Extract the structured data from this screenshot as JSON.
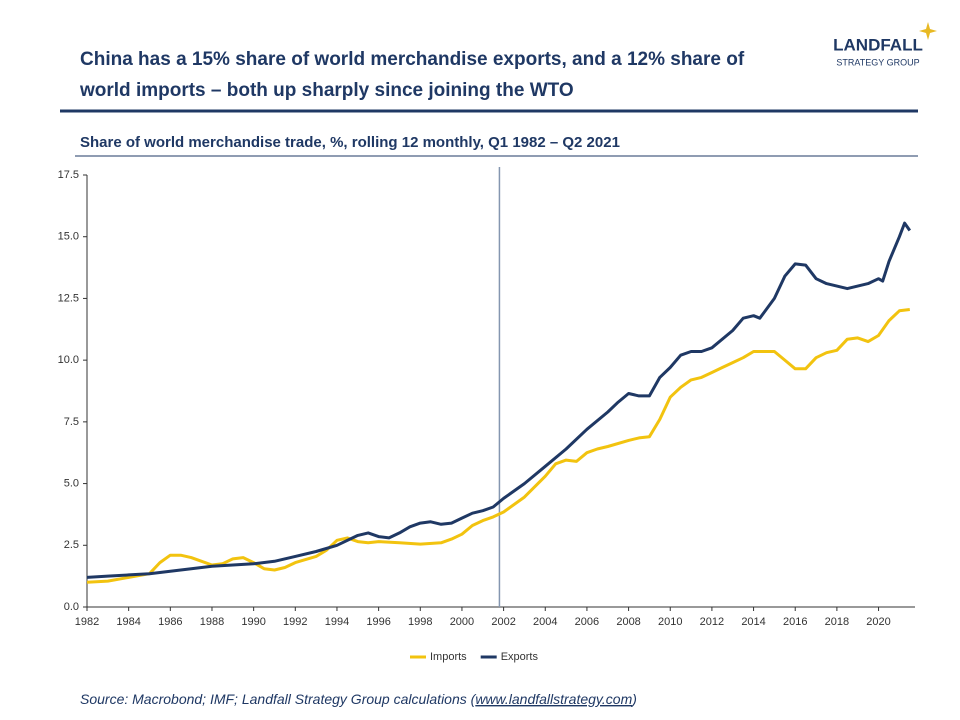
{
  "header": {
    "title_lines": [
      "China has a 15% share of world merchandise exports, and a 12% share of",
      "world imports – both up sharply since joining the WTO"
    ],
    "logo_name": "LANDFALL",
    "logo_sub": "STRATEGY GROUP"
  },
  "chart_data": {
    "type": "line",
    "subtitle": "Share of world merchandise trade, %, rolling 12 monthly, Q1 1982 – Q2 2021",
    "xlim": [
      1982,
      2021.75
    ],
    "ylim": [
      0,
      17.5
    ],
    "xticks": [
      1982,
      1984,
      1986,
      1988,
      1990,
      1992,
      1994,
      1996,
      1998,
      2000,
      2002,
      2004,
      2006,
      2008,
      2010,
      2012,
      2014,
      2016,
      2018,
      2020
    ],
    "yticks": [
      {
        "value": 0,
        "label": "0.0"
      },
      2.5,
      {
        "value": 5,
        "label": "5.0"
      },
      7.5,
      {
        "value": 10,
        "label": "10.0"
      },
      12.5,
      {
        "value": 15,
        "label": "15.0"
      },
      17.5
    ],
    "reference_x": 2001.8,
    "reference_color": "#8496b0",
    "legend": "bottom",
    "series": [
      {
        "name": "Imports",
        "color": "#f2c30f",
        "x": [
          1982,
          1983,
          1984,
          1985,
          1985.5,
          1986,
          1986.5,
          1987,
          1987.5,
          1988,
          1988.5,
          1989,
          1989.5,
          1990,
          1990.5,
          1991,
          1991.5,
          1992,
          1993,
          1993.5,
          1994,
          1994.5,
          1995,
          1995.5,
          1996,
          1997,
          1998,
          1999,
          1999.5,
          2000,
          2000.5,
          2001,
          2001.5,
          2002,
          2003,
          2004,
          2004.5,
          2005,
          2005.5,
          2006,
          2006.5,
          2007,
          2008,
          2008.5,
          2009,
          2009.5,
          2010,
          2010.5,
          2011,
          2011.5,
          2012,
          2012.5,
          2013,
          2013.5,
          2014,
          2014.5,
          2015,
          2015.5,
          2016,
          2016.5,
          2017,
          2017.5,
          2018,
          2018.5,
          2019,
          2019.5,
          2020,
          2020.5,
          2021,
          2021.5
        ],
        "values": [
          1.0,
          1.05,
          1.2,
          1.35,
          1.8,
          2.1,
          2.1,
          2.0,
          1.85,
          1.7,
          1.75,
          1.95,
          2.0,
          1.8,
          1.55,
          1.5,
          1.6,
          1.8,
          2.05,
          2.3,
          2.7,
          2.8,
          2.65,
          2.6,
          2.65,
          2.6,
          2.55,
          2.6,
          2.75,
          2.95,
          3.3,
          3.5,
          3.65,
          3.85,
          4.45,
          5.3,
          5.8,
          5.95,
          5.9,
          6.25,
          6.4,
          6.5,
          6.75,
          6.85,
          6.9,
          7.6,
          8.5,
          8.9,
          9.2,
          9.3,
          9.5,
          9.7,
          9.9,
          10.1,
          10.35,
          10.35,
          10.35,
          10.0,
          9.65,
          9.65,
          10.1,
          10.3,
          10.4,
          10.85,
          10.9,
          10.75,
          11.0,
          11.6,
          12.0,
          12.05
        ]
      },
      {
        "name": "Exports",
        "color": "#1f3864",
        "x": [
          1982,
          1983,
          1984,
          1985,
          1986,
          1987,
          1988,
          1989,
          1990,
          1991,
          1992,
          1993,
          1994,
          1995,
          1995.5,
          1996,
          1996.5,
          1997,
          1997.5,
          1998,
          1998.5,
          1999,
          1999.5,
          2000,
          2000.5,
          2001,
          2001.5,
          2002,
          2003,
          2004,
          2005,
          2006,
          2007,
          2007.5,
          2008,
          2008.5,
          2009,
          2009.5,
          2010,
          2010.5,
          2011,
          2011.5,
          2012,
          2013,
          2013.5,
          2014,
          2014.3,
          2015,
          2015.5,
          2016,
          2016.5,
          2017,
          2017.5,
          2018,
          2018.5,
          2019,
          2019.5,
          2020,
          2020.2,
          2020.5,
          2021,
          2021.25,
          2021.5
        ],
        "values": [
          1.2,
          1.25,
          1.3,
          1.35,
          1.45,
          1.55,
          1.65,
          1.7,
          1.75,
          1.85,
          2.05,
          2.25,
          2.5,
          2.9,
          3.0,
          2.85,
          2.8,
          3.0,
          3.25,
          3.4,
          3.45,
          3.35,
          3.4,
          3.6,
          3.8,
          3.9,
          4.05,
          4.4,
          5.0,
          5.7,
          6.4,
          7.2,
          7.9,
          8.3,
          8.65,
          8.55,
          8.55,
          9.3,
          9.7,
          10.2,
          10.35,
          10.35,
          10.5,
          11.2,
          11.7,
          11.8,
          11.7,
          12.5,
          13.4,
          13.9,
          13.85,
          13.3,
          13.1,
          13.0,
          12.9,
          13.0,
          13.1,
          13.3,
          13.2,
          14.0,
          15.0,
          15.55,
          15.25
        ]
      }
    ]
  },
  "footer": {
    "source_prefix": "Source: Macrobond; IMF; Landfall Strategy Group calculations (",
    "source_link": "www.landfallstrategy.com",
    "source_suffix": ")"
  }
}
